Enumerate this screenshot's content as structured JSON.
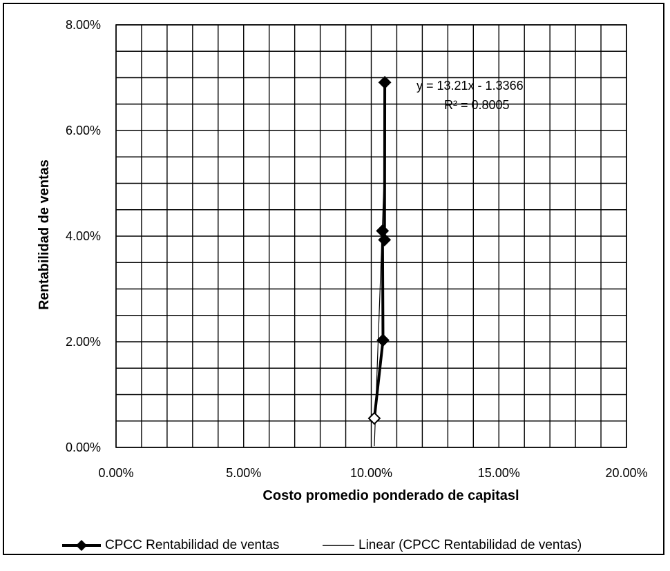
{
  "chart_data": {
    "type": "scatter",
    "xlabel": "Costo  promedio ponderado de capitasl",
    "ylabel": "Rentabilidad de ventas",
    "xlim": [
      0,
      0.2
    ],
    "ylim": [
      0,
      0.08
    ],
    "x_ticks": [
      "0.00%",
      "5.00%",
      "10.00%",
      "15.00%",
      "20.00%"
    ],
    "y_ticks": [
      "0.00%",
      "2.00%",
      "4.00%",
      "6.00%",
      "8.00%"
    ],
    "grid": true,
    "series": [
      {
        "name": "CPCC Rentabilidad de ventas",
        "color": "#000000",
        "marker": "diamond",
        "points": [
          {
            "x": 0.1012,
            "y": 0.0055
          },
          {
            "x": 0.1046,
            "y": 0.0203
          },
          {
            "x": 0.1044,
            "y": 0.041
          },
          {
            "x": 0.1052,
            "y": 0.0393
          },
          {
            "x": 0.1053,
            "y": 0.0691
          }
        ]
      }
    ],
    "trendline": {
      "name": "Linear (CPCC Rentabilidad de ventas)",
      "type": "linear",
      "equation": "y = 13.21x - 1.3366",
      "r_squared": "R² = 0.8005",
      "x_range": [
        0.1012,
        0.1053
      ]
    },
    "legend_position": "bottom"
  }
}
